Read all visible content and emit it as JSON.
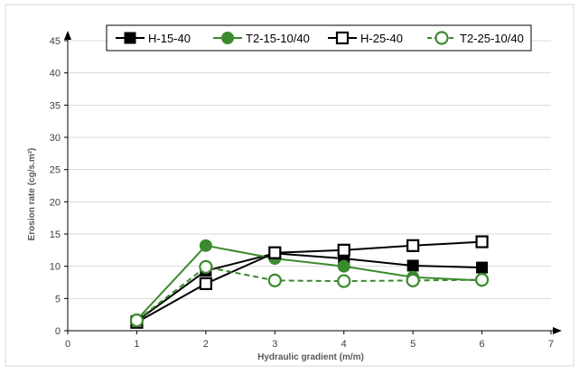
{
  "chart_data": {
    "type": "line",
    "title": "",
    "xlabel": "Hydraulic gradient (m/m)",
    "ylabel": "Erosion rate (cg/s.m²)",
    "xlim": [
      0,
      7
    ],
    "ylim": [
      0,
      45
    ],
    "x_ticks": [
      "0",
      "1",
      "2",
      "3",
      "4",
      "5",
      "6",
      "7"
    ],
    "y_ticks": [
      "0",
      "5",
      "10",
      "15",
      "20",
      "25",
      "30",
      "35",
      "40",
      "45"
    ],
    "grid": "horizontal",
    "legend_position": "top",
    "series": [
      {
        "name": "H-15-40",
        "color": "#000000",
        "marker": "filled-square",
        "dashed": false,
        "x": [
          1,
          2,
          3,
          4,
          5,
          6
        ],
        "y": [
          1.5,
          9.3,
          12.0,
          11.2,
          10.1,
          9.8
        ]
      },
      {
        "name": "T2-15-10/40",
        "color": "#3c8a2e",
        "marker": "filled-circle",
        "dashed": false,
        "x": [
          1,
          2,
          3,
          4,
          5,
          6
        ],
        "y": [
          1.7,
          13.2,
          11.2,
          10.0,
          8.3,
          7.8
        ]
      },
      {
        "name": "H-25-40",
        "color": "#000000",
        "marker": "open-square",
        "dashed": false,
        "x": [
          1,
          2,
          3,
          4,
          5,
          6
        ],
        "y": [
          1.3,
          7.3,
          12.1,
          12.5,
          13.2,
          13.8
        ]
      },
      {
        "name": "T2-25-10/40",
        "color": "#3c8a2e",
        "marker": "open-circle",
        "dashed": true,
        "x": [
          1,
          2,
          3,
          4,
          5,
          6
        ],
        "y": [
          1.6,
          9.9,
          7.8,
          7.7,
          7.8,
          7.9
        ]
      }
    ]
  }
}
